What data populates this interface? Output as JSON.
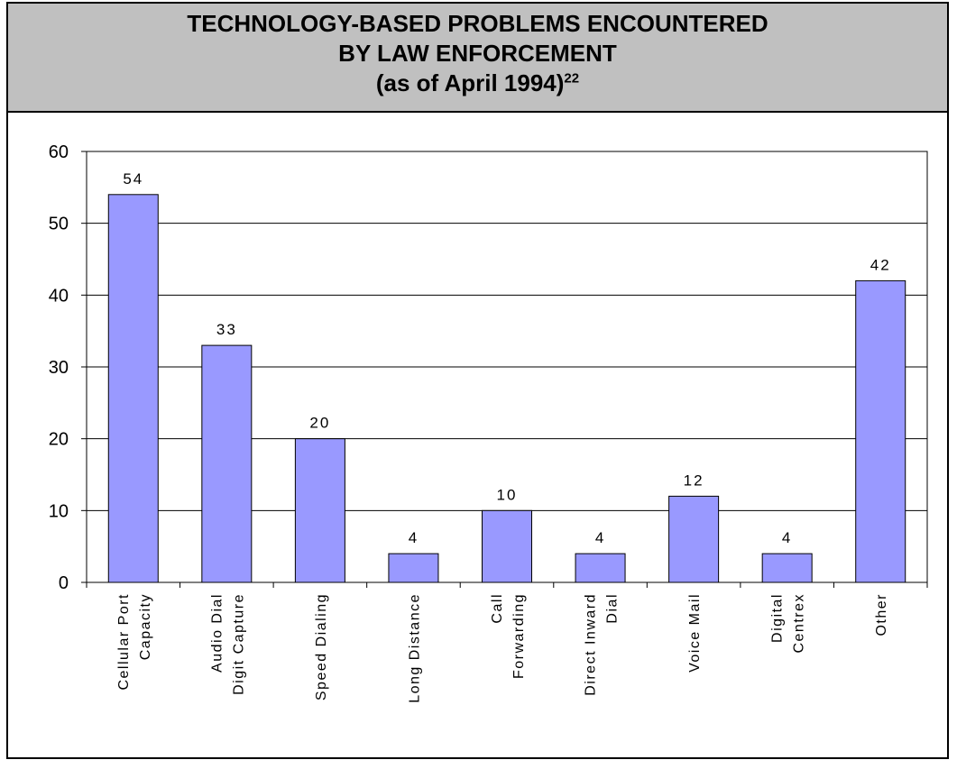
{
  "header": {
    "title_line1": "TECHNOLOGY-BASED PROBLEMS ENCOUNTERED",
    "title_line2": "BY LAW ENFORCEMENT",
    "title_line3": "(as of April 1994)",
    "footnote_ref": "22"
  },
  "colors": {
    "bar_fill": "#9999ff",
    "bar_stroke": "#000000",
    "title_bg": "#c0c0c0"
  },
  "chart_data": {
    "type": "bar",
    "title": "TECHNOLOGY-BASED PROBLEMS ENCOUNTERED BY LAW ENFORCEMENT (as of April 1994)",
    "categories": [
      [
        "Cellular Port",
        "Capacity"
      ],
      [
        "Audio Dial",
        "Digit Capture"
      ],
      [
        "Speed Dialing"
      ],
      [
        "Long Distance"
      ],
      [
        "Call",
        "Forwarding"
      ],
      [
        "Direct Inward",
        "Dial"
      ],
      [
        "Voice Mail"
      ],
      [
        "Digital",
        "Centrex"
      ],
      [
        "Other"
      ]
    ],
    "values": [
      54,
      33,
      20,
      4,
      10,
      4,
      12,
      4,
      42
    ],
    "data_labels": [
      "54",
      "33",
      "20",
      "4",
      "10",
      "4",
      "12",
      "4",
      "42"
    ],
    "xlabel": "",
    "ylabel": "",
    "ylim": [
      0,
      60
    ],
    "yticks": [
      "0",
      "10",
      "20",
      "30",
      "40",
      "50",
      "60"
    ],
    "grid": true,
    "legend": "none"
  }
}
